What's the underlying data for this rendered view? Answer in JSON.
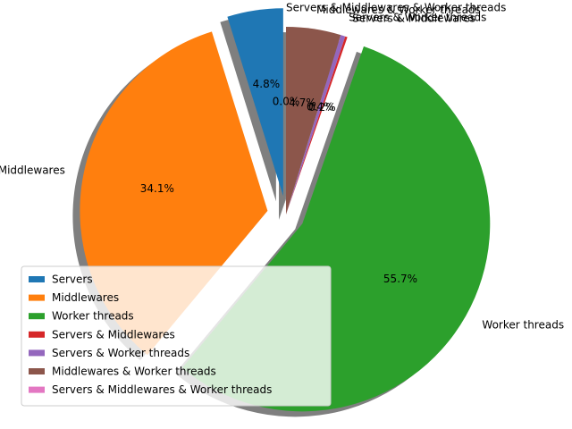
{
  "chart_data": {
    "type": "pie",
    "title": "",
    "categories": [
      "Servers",
      "Middlewares",
      "Worker threads",
      "Servers & Middlewares",
      "Servers & Worker threads",
      "Middlewares & Worker threads",
      "Servers & Middlewares & Worker threads"
    ],
    "values": [
      4.8,
      34.1,
      55.7,
      0.2,
      0.4,
      4.7,
      0.0
    ],
    "percent_labels": [
      "4.8%",
      "34.1%",
      "55.7%",
      "0.2%",
      "0.4%",
      "4.7%",
      "0.0%"
    ],
    "colors": [
      "#1f77b4",
      "#ff7f0e",
      "#2ca02c",
      "#d62728",
      "#9467bd",
      "#8c564b",
      "#e377c2"
    ],
    "exploded": [
      true,
      true,
      true,
      false,
      false,
      false,
      false
    ],
    "shadow": true,
    "start_angle_deg": 90,
    "direction": "counterclockwise",
    "legend_placement": "lower-left"
  }
}
